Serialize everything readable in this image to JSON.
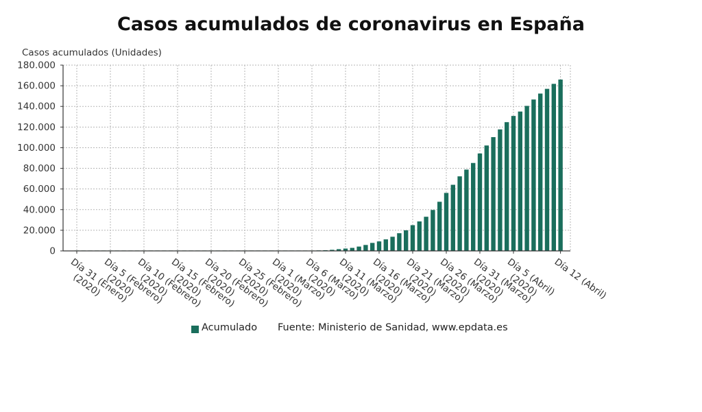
{
  "chart_data": {
    "type": "bar",
    "title": "Casos acumulados de coronavirus en España",
    "ylabel": "Casos acumulados (Unidades)",
    "xlabel": "",
    "ylim": [
      0,
      180000
    ],
    "yticks": [
      "0",
      "20.000",
      "40.000",
      "60.000",
      "80.000",
      "100.000",
      "120.000",
      "140.000",
      "160.000",
      "180.000"
    ],
    "xtick_labels": [
      {
        "day": "2020-01-31",
        "line1": "Día 31 (Enero)",
        "line2": "(2020)"
      },
      {
        "day": "2020-02-05",
        "line1": "Día 5 (Febrero)",
        "line2": "(2020)"
      },
      {
        "day": "2020-02-10",
        "line1": "Día 10 (Febrero)",
        "line2": "(2020)"
      },
      {
        "day": "2020-02-15",
        "line1": "Día 15 (Febrero)",
        "line2": "(2020)"
      },
      {
        "day": "2020-02-20",
        "line1": "Día 20 (Febrero)",
        "line2": "(2020)"
      },
      {
        "day": "2020-02-25",
        "line1": "Día 25 (Febrero)",
        "line2": "(2020)"
      },
      {
        "day": "2020-03-01",
        "line1": "Día 1 (Marzo)",
        "line2": "(2020)"
      },
      {
        "day": "2020-03-06",
        "line1": "Día 6 (Marzo)",
        "line2": "(2020)"
      },
      {
        "day": "2020-03-11",
        "line1": "Día 11 (Marzo)",
        "line2": "(2020)"
      },
      {
        "day": "2020-03-16",
        "line1": "Día 16 (Marzo)",
        "line2": "(2020)"
      },
      {
        "day": "2020-03-21",
        "line1": "Día 21 (Marzo)",
        "line2": "(2020)"
      },
      {
        "day": "2020-03-26",
        "line1": "Día 26 (Marzo)",
        "line2": "(2020)"
      },
      {
        "day": "2020-03-31",
        "line1": "Día 31 (Marzo)",
        "line2": "(2020)"
      },
      {
        "day": "2020-04-05",
        "line1": "Día 5 (Abril)",
        "line2": "(2020)"
      },
      {
        "day": "2020-04-12",
        "line1": "Día 12 (Abril)",
        "line2": ""
      }
    ],
    "series": [
      {
        "name": "Acumulado",
        "color": "#1a6e5c",
        "points": [
          {
            "x": "2020-01-31",
            "y": 1
          },
          {
            "x": "2020-02-01",
            "y": 1
          },
          {
            "x": "2020-02-02",
            "y": 1
          },
          {
            "x": "2020-02-03",
            "y": 1
          },
          {
            "x": "2020-02-04",
            "y": 1
          },
          {
            "x": "2020-02-05",
            "y": 1
          },
          {
            "x": "2020-02-06",
            "y": 1
          },
          {
            "x": "2020-02-07",
            "y": 1
          },
          {
            "x": "2020-02-08",
            "y": 1
          },
          {
            "x": "2020-02-09",
            "y": 2
          },
          {
            "x": "2020-02-10",
            "y": 2
          },
          {
            "x": "2020-02-11",
            "y": 2
          },
          {
            "x": "2020-02-12",
            "y": 2
          },
          {
            "x": "2020-02-13",
            "y": 2
          },
          {
            "x": "2020-02-14",
            "y": 2
          },
          {
            "x": "2020-02-15",
            "y": 2
          },
          {
            "x": "2020-02-16",
            "y": 2
          },
          {
            "x": "2020-02-17",
            "y": 2
          },
          {
            "x": "2020-02-18",
            "y": 2
          },
          {
            "x": "2020-02-19",
            "y": 2
          },
          {
            "x": "2020-02-20",
            "y": 2
          },
          {
            "x": "2020-02-21",
            "y": 2
          },
          {
            "x": "2020-02-22",
            "y": 2
          },
          {
            "x": "2020-02-23",
            "y": 2
          },
          {
            "x": "2020-02-24",
            "y": 3
          },
          {
            "x": "2020-02-25",
            "y": 6
          },
          {
            "x": "2020-02-26",
            "y": 13
          },
          {
            "x": "2020-02-27",
            "y": 15
          },
          {
            "x": "2020-02-28",
            "y": 32
          },
          {
            "x": "2020-02-29",
            "y": 45
          },
          {
            "x": "2020-03-01",
            "y": 84
          },
          {
            "x": "2020-03-02",
            "y": 120
          },
          {
            "x": "2020-03-03",
            "y": 165
          },
          {
            "x": "2020-03-04",
            "y": 222
          },
          {
            "x": "2020-03-05",
            "y": 259
          },
          {
            "x": "2020-03-06",
            "y": 400
          },
          {
            "x": "2020-03-07",
            "y": 500
          },
          {
            "x": "2020-03-08",
            "y": 673
          },
          {
            "x": "2020-03-09",
            "y": 1073
          },
          {
            "x": "2020-03-10",
            "y": 1695
          },
          {
            "x": "2020-03-11",
            "y": 2277
          },
          {
            "x": "2020-03-12",
            "y": 2950
          },
          {
            "x": "2020-03-13",
            "y": 4209
          },
          {
            "x": "2020-03-14",
            "y": 5753
          },
          {
            "x": "2020-03-15",
            "y": 7753
          },
          {
            "x": "2020-03-16",
            "y": 9191
          },
          {
            "x": "2020-03-17",
            "y": 11178
          },
          {
            "x": "2020-03-18",
            "y": 13716
          },
          {
            "x": "2020-03-19",
            "y": 17147
          },
          {
            "x": "2020-03-20",
            "y": 19980
          },
          {
            "x": "2020-03-21",
            "y": 24926
          },
          {
            "x": "2020-03-22",
            "y": 28572
          },
          {
            "x": "2020-03-23",
            "y": 33089
          },
          {
            "x": "2020-03-24",
            "y": 39673
          },
          {
            "x": "2020-03-25",
            "y": 47610
          },
          {
            "x": "2020-03-26",
            "y": 56188
          },
          {
            "x": "2020-03-27",
            "y": 64059
          },
          {
            "x": "2020-03-28",
            "y": 72248
          },
          {
            "x": "2020-03-29",
            "y": 78797
          },
          {
            "x": "2020-03-30",
            "y": 85195
          },
          {
            "x": "2020-03-31",
            "y": 94417
          },
          {
            "x": "2020-04-01",
            "y": 102136
          },
          {
            "x": "2020-04-02",
            "y": 110238
          },
          {
            "x": "2020-04-03",
            "y": 117710
          },
          {
            "x": "2020-04-04",
            "y": 124736
          },
          {
            "x": "2020-04-05",
            "y": 130759
          },
          {
            "x": "2020-04-06",
            "y": 135032
          },
          {
            "x": "2020-04-07",
            "y": 140510
          },
          {
            "x": "2020-04-08",
            "y": 146690
          },
          {
            "x": "2020-04-09",
            "y": 152446
          },
          {
            "x": "2020-04-10",
            "y": 157022
          },
          {
            "x": "2020-04-11",
            "y": 161852
          },
          {
            "x": "2020-04-12",
            "y": 166019
          }
        ]
      }
    ],
    "grid": true,
    "legend": "bottom-center",
    "source": "Fuente: Ministerio de Sanidad, www.epdata.es"
  }
}
